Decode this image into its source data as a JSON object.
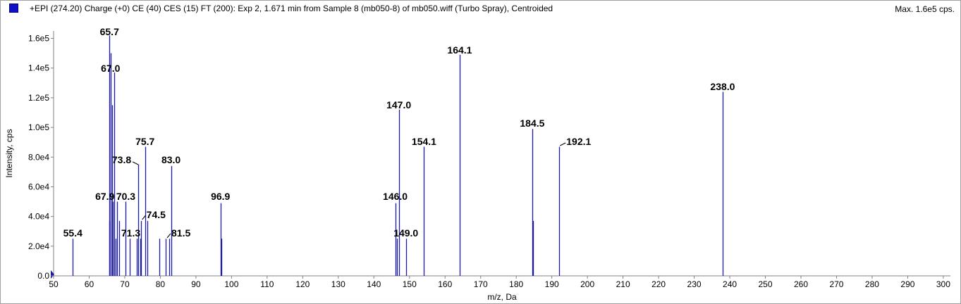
{
  "header": {
    "title": "+EPI (274.20) Charge (+0) CE (40) CES (15) FT (200): Exp 2, 1.671 min from Sample 8 (mb050-8) of mb050.wiff (Turbo Spray), Centroided",
    "max_label": "Max. 1.6e5 cps."
  },
  "chart_data": {
    "type": "bar",
    "title": "+EPI (274.20) Charge (+0) CE (40) CES (15) FT (200): Exp 2, 1.671 min from Sample 8 (mb050-8) of mb050.wiff (Turbo Spray), Centroided",
    "xlabel": "m/z, Da",
    "ylabel": "Intensity, cps",
    "xlim": [
      50,
      302
    ],
    "ylim": [
      0,
      165000
    ],
    "grid": false,
    "series_color": "#1a1aa6",
    "x_ticks": [
      50,
      60,
      70,
      80,
      90,
      100,
      110,
      120,
      130,
      140,
      150,
      160,
      170,
      180,
      190,
      200,
      210,
      220,
      230,
      240,
      250,
      260,
      270,
      280,
      290,
      300
    ],
    "y_ticks": [
      {
        "value": 0,
        "label": "0.0"
      },
      {
        "value": 20000,
        "label": "2.0e4"
      },
      {
        "value": 40000,
        "label": "4.0e4"
      },
      {
        "value": 60000,
        "label": "6.0e4"
      },
      {
        "value": 80000,
        "label": "8.0e4"
      },
      {
        "value": 100000,
        "label": "1.0e5"
      },
      {
        "value": 120000,
        "label": "1.2e5"
      },
      {
        "value": 140000,
        "label": "1.4e5"
      },
      {
        "value": 160000,
        "label": "1.6e5"
      }
    ],
    "peaks": [
      {
        "mz": 55.4,
        "intensity": 25000
      },
      {
        "mz": 65.6,
        "intensity": 37000
      },
      {
        "mz": 65.7,
        "intensity": 162000
      },
      {
        "mz": 66.1,
        "intensity": 150000
      },
      {
        "mz": 66.4,
        "intensity": 115000
      },
      {
        "mz": 66.7,
        "intensity": 50000
      },
      {
        "mz": 67.0,
        "intensity": 137000
      },
      {
        "mz": 67.4,
        "intensity": 25000
      },
      {
        "mz": 67.9,
        "intensity": 50000
      },
      {
        "mz": 68.5,
        "intensity": 37000
      },
      {
        "mz": 70.3,
        "intensity": 50000
      },
      {
        "mz": 71.3,
        "intensity": 25000
      },
      {
        "mz": 73.3,
        "intensity": 25000
      },
      {
        "mz": 73.8,
        "intensity": 75000
      },
      {
        "mz": 74.3,
        "intensity": 25000
      },
      {
        "mz": 74.5,
        "intensity": 37000
      },
      {
        "mz": 75.7,
        "intensity": 87000
      },
      {
        "mz": 76.4,
        "intensity": 37000
      },
      {
        "mz": 79.8,
        "intensity": 25000
      },
      {
        "mz": 81.5,
        "intensity": 25000
      },
      {
        "mz": 82.4,
        "intensity": 25000
      },
      {
        "mz": 83.0,
        "intensity": 74000
      },
      {
        "mz": 96.9,
        "intensity": 49000
      },
      {
        "mz": 97.1,
        "intensity": 25000
      },
      {
        "mz": 146.0,
        "intensity": 49000
      },
      {
        "mz": 146.4,
        "intensity": 25000
      },
      {
        "mz": 147.0,
        "intensity": 112000
      },
      {
        "mz": 149.0,
        "intensity": 25000
      },
      {
        "mz": 154.1,
        "intensity": 87000
      },
      {
        "mz": 164.1,
        "intensity": 149000
      },
      {
        "mz": 184.5,
        "intensity": 99000
      },
      {
        "mz": 184.7,
        "intensity": 37000
      },
      {
        "mz": 192.1,
        "intensity": 87000
      },
      {
        "mz": 238.0,
        "intensity": 124000
      }
    ],
    "annotations": [
      {
        "text": "55.4",
        "mz": 55.4
      },
      {
        "text": "65.7",
        "mz": 65.7
      },
      {
        "text": "67.0",
        "mz": 67.0
      },
      {
        "text": "67.9",
        "mz": 67.9
      },
      {
        "text": "70.3",
        "mz": 70.3
      },
      {
        "text": "71.3",
        "mz": 71.3
      },
      {
        "text": "73.8",
        "mz": 73.8
      },
      {
        "text": "74.5",
        "mz": 74.5
      },
      {
        "text": "75.7",
        "mz": 75.7
      },
      {
        "text": "81.5",
        "mz": 81.5
      },
      {
        "text": "83.0",
        "mz": 83.0
      },
      {
        "text": "96.9",
        "mz": 96.9
      },
      {
        "text": "146.0",
        "mz": 146.0
      },
      {
        "text": "147.0",
        "mz": 147.0
      },
      {
        "text": "149.0",
        "mz": 149.0
      },
      {
        "text": "154.1",
        "mz": 154.1
      },
      {
        "text": "164.1",
        "mz": 164.1
      },
      {
        "text": "184.5",
        "mz": 184.5
      },
      {
        "text": "192.1",
        "mz": 192.1
      },
      {
        "text": "238.0",
        "mz": 238.0
      }
    ]
  }
}
